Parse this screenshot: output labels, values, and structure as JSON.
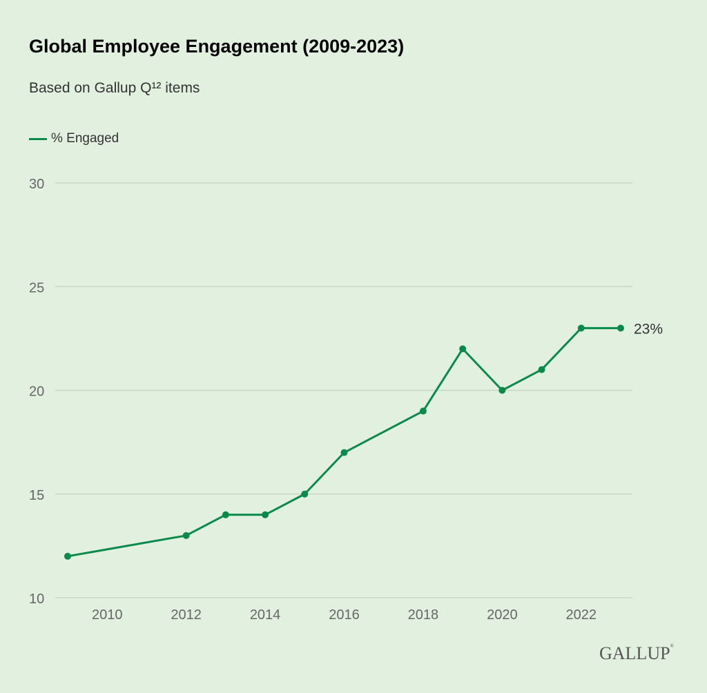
{
  "chart_data": {
    "type": "line",
    "title": "Global Employee Engagement (2009-2023)",
    "subtitle": "Based on Gallup Q¹² items",
    "xlabel": "",
    "ylabel": "",
    "ylim": [
      10,
      30
    ],
    "xlim": [
      2009,
      2023
    ],
    "yticks": [
      "10",
      "15",
      "20",
      "25",
      "30"
    ],
    "xticks": [
      "2010",
      "2012",
      "2014",
      "2016",
      "2018",
      "2020",
      "2022"
    ],
    "grid": "horizontal",
    "legend_position": "top-left",
    "series": [
      {
        "name": "% Engaged",
        "color": "#0a8a4a",
        "x": [
          2009,
          2012,
          2013,
          2014,
          2015,
          2016,
          2018,
          2019,
          2020,
          2021,
          2022,
          2023
        ],
        "y": [
          12,
          13,
          14,
          14,
          15,
          17,
          19,
          22,
          20,
          21,
          23,
          23
        ]
      }
    ],
    "annotations": [
      {
        "x": 2023,
        "y": 23,
        "text": "23%"
      }
    ]
  },
  "branding": {
    "logo": "GALLUP"
  }
}
